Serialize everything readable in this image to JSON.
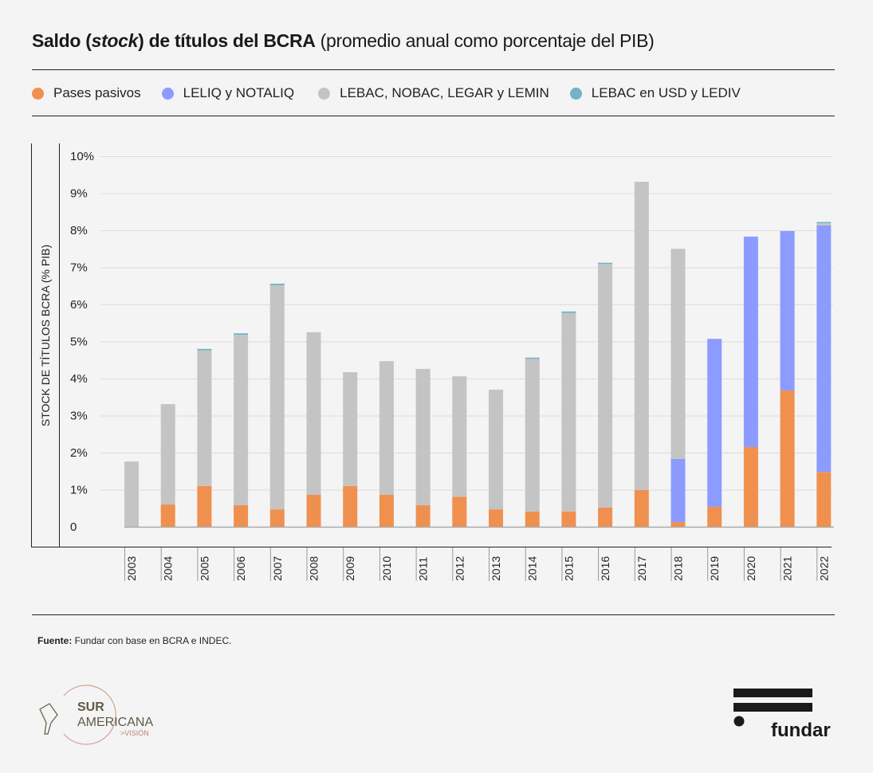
{
  "title": {
    "bold_part_1": "Saldo (",
    "italic_part": "stock",
    "bold_part_2": ") de títulos del BCRA",
    "normal_part": " (promedio anual como porcentaje del PIB)"
  },
  "legend": [
    {
      "label": "Pases pasivos",
      "color": "#f0904f"
    },
    {
      "label": "LELIQ y NOTALIQ",
      "color": "#8c9bff"
    },
    {
      "label": "LEBAC, NOBAC, LEGAR y LEMIN",
      "color": "#c4c4c4"
    },
    {
      "label": "LEBAC en USD y LEDIV",
      "color": "#72b3c4"
    }
  ],
  "source": {
    "label": "Fuente:",
    "text": " Fundar con base en BCRA e INDEC."
  },
  "logos": {
    "left": {
      "line1": "SUR",
      "line2": "AMERICANA",
      "line3": ">VISIÓN"
    },
    "right": {
      "text": "fundar"
    }
  },
  "chart_data": {
    "type": "bar",
    "stacked": true,
    "title": "Saldo (stock) de títulos del BCRA (promedio anual como porcentaje del PIB)",
    "xlabel": "",
    "ylabel": "STOCK DE TÍTULOS BCRA (% PIB)",
    "ylim": [
      0,
      10
    ],
    "yticks": [
      "0",
      "1%",
      "2%",
      "3%",
      "4%",
      "5%",
      "6%",
      "7%",
      "8%",
      "9%",
      "10%"
    ],
    "grid": true,
    "legend_position": "top",
    "categories": [
      "2003",
      "2004",
      "2005",
      "2006",
      "2007",
      "2008",
      "2009",
      "2010",
      "2011",
      "2012",
      "2013",
      "2014",
      "2015",
      "2016",
      "2017",
      "2018",
      "2019",
      "2020",
      "2021",
      "2022"
    ],
    "series": [
      {
        "name": "Pases pasivos",
        "color": "#f0904f",
        "values": [
          0.0,
          0.6,
          1.1,
          0.58,
          0.47,
          0.86,
          1.1,
          0.86,
          0.58,
          0.81,
          0.47,
          0.41,
          0.41,
          0.52,
          0.99,
          0.13,
          0.54,
          2.15,
          3.68,
          1.48
        ]
      },
      {
        "name": "LELIQ y NOTALIQ",
        "color": "#8c9bff",
        "values": [
          0,
          0,
          0,
          0,
          0,
          0,
          0,
          0,
          0,
          0,
          0,
          0,
          0,
          0,
          0,
          1.7,
          4.53,
          5.68,
          4.3,
          6.65
        ]
      },
      {
        "name": "LEBAC, NOBAC, LEGAR y LEMIN",
        "color": "#c4c4c4",
        "values": [
          1.76,
          2.71,
          3.66,
          4.6,
          6.05,
          4.39,
          3.07,
          3.61,
          3.68,
          3.25,
          3.23,
          4.12,
          5.36,
          6.57,
          8.32,
          5.67,
          0,
          0,
          0,
          0.06
        ]
      },
      {
        "name": "LEBAC en USD y LEDIV",
        "color": "#72b3c4",
        "values": [
          0,
          0,
          0.04,
          0.04,
          0.04,
          0,
          0,
          0,
          0,
          0,
          0,
          0.03,
          0.04,
          0.03,
          0,
          0,
          0,
          0,
          0,
          0.03
        ]
      }
    ]
  }
}
